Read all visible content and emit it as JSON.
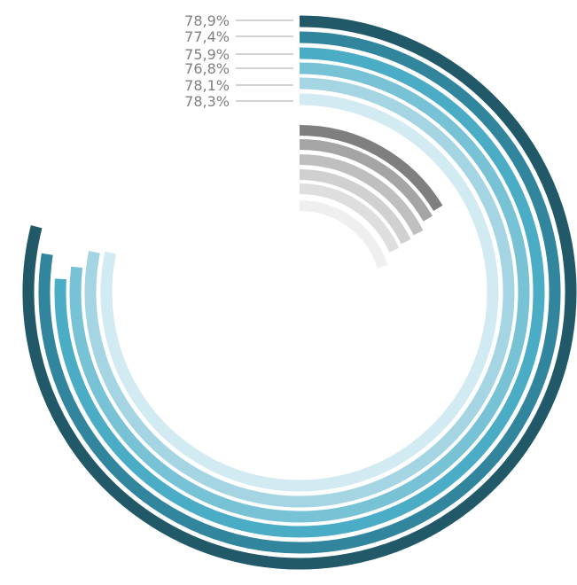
{
  "chart_data": {
    "type": "radial-bar",
    "title": "",
    "series": [
      {
        "values": [
          78.9,
          77.4,
          75.9,
          76.8,
          78.1,
          78.3
        ],
        "labels": [
          "78,9%",
          "77,4%",
          "75,9%",
          "76,8%",
          "78,1%",
          "78,3%"
        ],
        "colors": [
          "#215968",
          "#31859c",
          "#4bacc6",
          "#78c2d6",
          "#a5d5e2",
          "#d2eaf1"
        ]
      },
      {
        "values": [
          16.3,
          16.7,
          17.6,
          17.9,
          18.3,
          20.2
        ],
        "colors": [
          "#7f7f7f",
          "#a5a5a5",
          "#bfbfbf",
          "#d0d0d0",
          "#dedede",
          "#efefef"
        ]
      }
    ],
    "scale_max": 100,
    "start_angle": "12 o'clock",
    "direction": "clockwise",
    "legend": "none"
  }
}
